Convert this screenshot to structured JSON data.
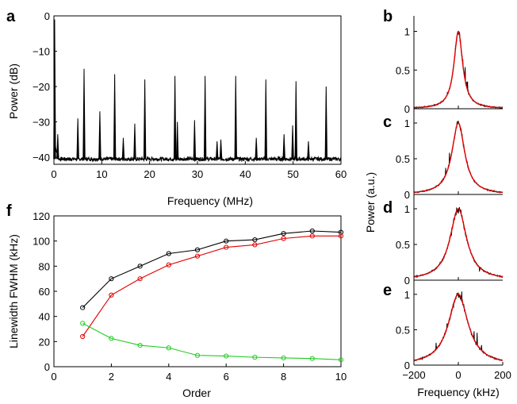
{
  "chart_data": [
    {
      "panel": "a",
      "type": "line",
      "xlabel": "Frequency (MHz)",
      "ylabel": "Power (dB)",
      "xlim": [
        0,
        60
      ],
      "ylim": [
        -42,
        0
      ],
      "xticks": [
        0,
        10,
        20,
        30,
        40,
        50,
        60
      ],
      "yticks": [
        0,
        -10,
        -20,
        -30,
        -40
      ],
      "noise_floor": -40.5,
      "peaks": [
        {
          "x": 0.15,
          "y": -1
        },
        {
          "x": 0.8,
          "y": -33.5
        },
        {
          "x": 5.0,
          "y": -29
        },
        {
          "x": 6.3,
          "y": -15
        },
        {
          "x": 9.6,
          "y": -27
        },
        {
          "x": 12.7,
          "y": -16.5
        },
        {
          "x": 14.5,
          "y": -34.5
        },
        {
          "x": 16.9,
          "y": -30.5
        },
        {
          "x": 19.0,
          "y": -18
        },
        {
          "x": 25.3,
          "y": -17
        },
        {
          "x": 25.8,
          "y": -30
        },
        {
          "x": 29.4,
          "y": -29.5
        },
        {
          "x": 31.6,
          "y": -17
        },
        {
          "x": 34.1,
          "y": -35.5
        },
        {
          "x": 34.9,
          "y": -35
        },
        {
          "x": 38.0,
          "y": -17
        },
        {
          "x": 42.3,
          "y": -34.5
        },
        {
          "x": 44.3,
          "y": -18
        },
        {
          "x": 48.1,
          "y": -33.5
        },
        {
          "x": 49.9,
          "y": -31
        },
        {
          "x": 50.6,
          "y": -18.5
        },
        {
          "x": 53.2,
          "y": -35.5
        },
        {
          "x": 56.9,
          "y": -20
        }
      ]
    },
    {
      "panel": "f",
      "type": "line",
      "xlabel": "Order",
      "ylabel": "Linewidth FWHM (kHz)",
      "xlim": [
        0,
        10
      ],
      "ylim": [
        0,
        120
      ],
      "xticks": [
        0,
        2,
        4,
        6,
        8,
        10
      ],
      "yticks": [
        0,
        20,
        40,
        60,
        80,
        100,
        120
      ],
      "x": [
        1,
        2,
        3,
        4,
        5,
        6,
        7,
        8,
        9,
        10
      ],
      "series": [
        {
          "color": "#000000",
          "values": [
            47,
            70,
            80,
            90,
            93,
            100,
            101,
            106,
            108,
            107
          ]
        },
        {
          "color": "#e00000",
          "values": [
            24,
            57,
            70,
            81,
            88,
            95,
            97,
            102,
            104,
            104
          ]
        },
        {
          "color": "#22cc22",
          "values": [
            34.5,
            22.5,
            17,
            15,
            9,
            8.5,
            7.5,
            7,
            6.5,
            5.5
          ]
        }
      ]
    },
    {
      "panel": "b",
      "type": "line",
      "xlim": [
        -200,
        200
      ],
      "ylim": [
        0,
        1.2
      ],
      "yticks": [
        0,
        0.5,
        1
      ],
      "fit_fwhm_khz": 47,
      "fit_color": "#e00000",
      "data_color": "#000000"
    },
    {
      "panel": "c",
      "type": "line",
      "xlim": [
        -200,
        200
      ],
      "ylim": [
        0,
        1.2
      ],
      "yticks": [
        0,
        0.5,
        1
      ],
      "fit_fwhm_khz": 70,
      "fit_color": "#e00000",
      "data_color": "#000000"
    },
    {
      "panel": "d",
      "type": "line",
      "xlim": [
        -200,
        200
      ],
      "ylim": [
        0,
        1.2
      ],
      "yticks": [
        0,
        0.5,
        1
      ],
      "fit_fwhm_khz": 90,
      "fit_color": "#e00000",
      "data_color": "#000000"
    },
    {
      "panel": "e",
      "type": "line",
      "xlabel": "Frequency (kHz)",
      "xlim": [
        -200,
        200
      ],
      "ylim": [
        0,
        1.2
      ],
      "xticks": [
        -200,
        0,
        200
      ],
      "yticks": [
        0,
        0.5,
        1
      ],
      "fit_fwhm_khz": 107,
      "fit_color": "#e00000",
      "data_color": "#000000"
    }
  ],
  "shared": {
    "right_ylabel": "Power (a.u.)",
    "panel_letters": [
      "a",
      "b",
      "c",
      "d",
      "e",
      "f"
    ],
    "tick_labels": {
      "a_x": [
        "0",
        "10",
        "20",
        "30",
        "40",
        "50",
        "60"
      ],
      "a_y": [
        "0",
        "−10",
        "−20",
        "−30",
        "−40"
      ],
      "f_x": [
        "0",
        "2",
        "4",
        "6",
        "8",
        "10"
      ],
      "f_y": [
        "0",
        "20",
        "40",
        "60",
        "80",
        "100",
        "120"
      ],
      "r_y": [
        "1",
        "0.5",
        "0"
      ],
      "e_x": [
        "−200",
        "0",
        "200"
      ]
    }
  }
}
